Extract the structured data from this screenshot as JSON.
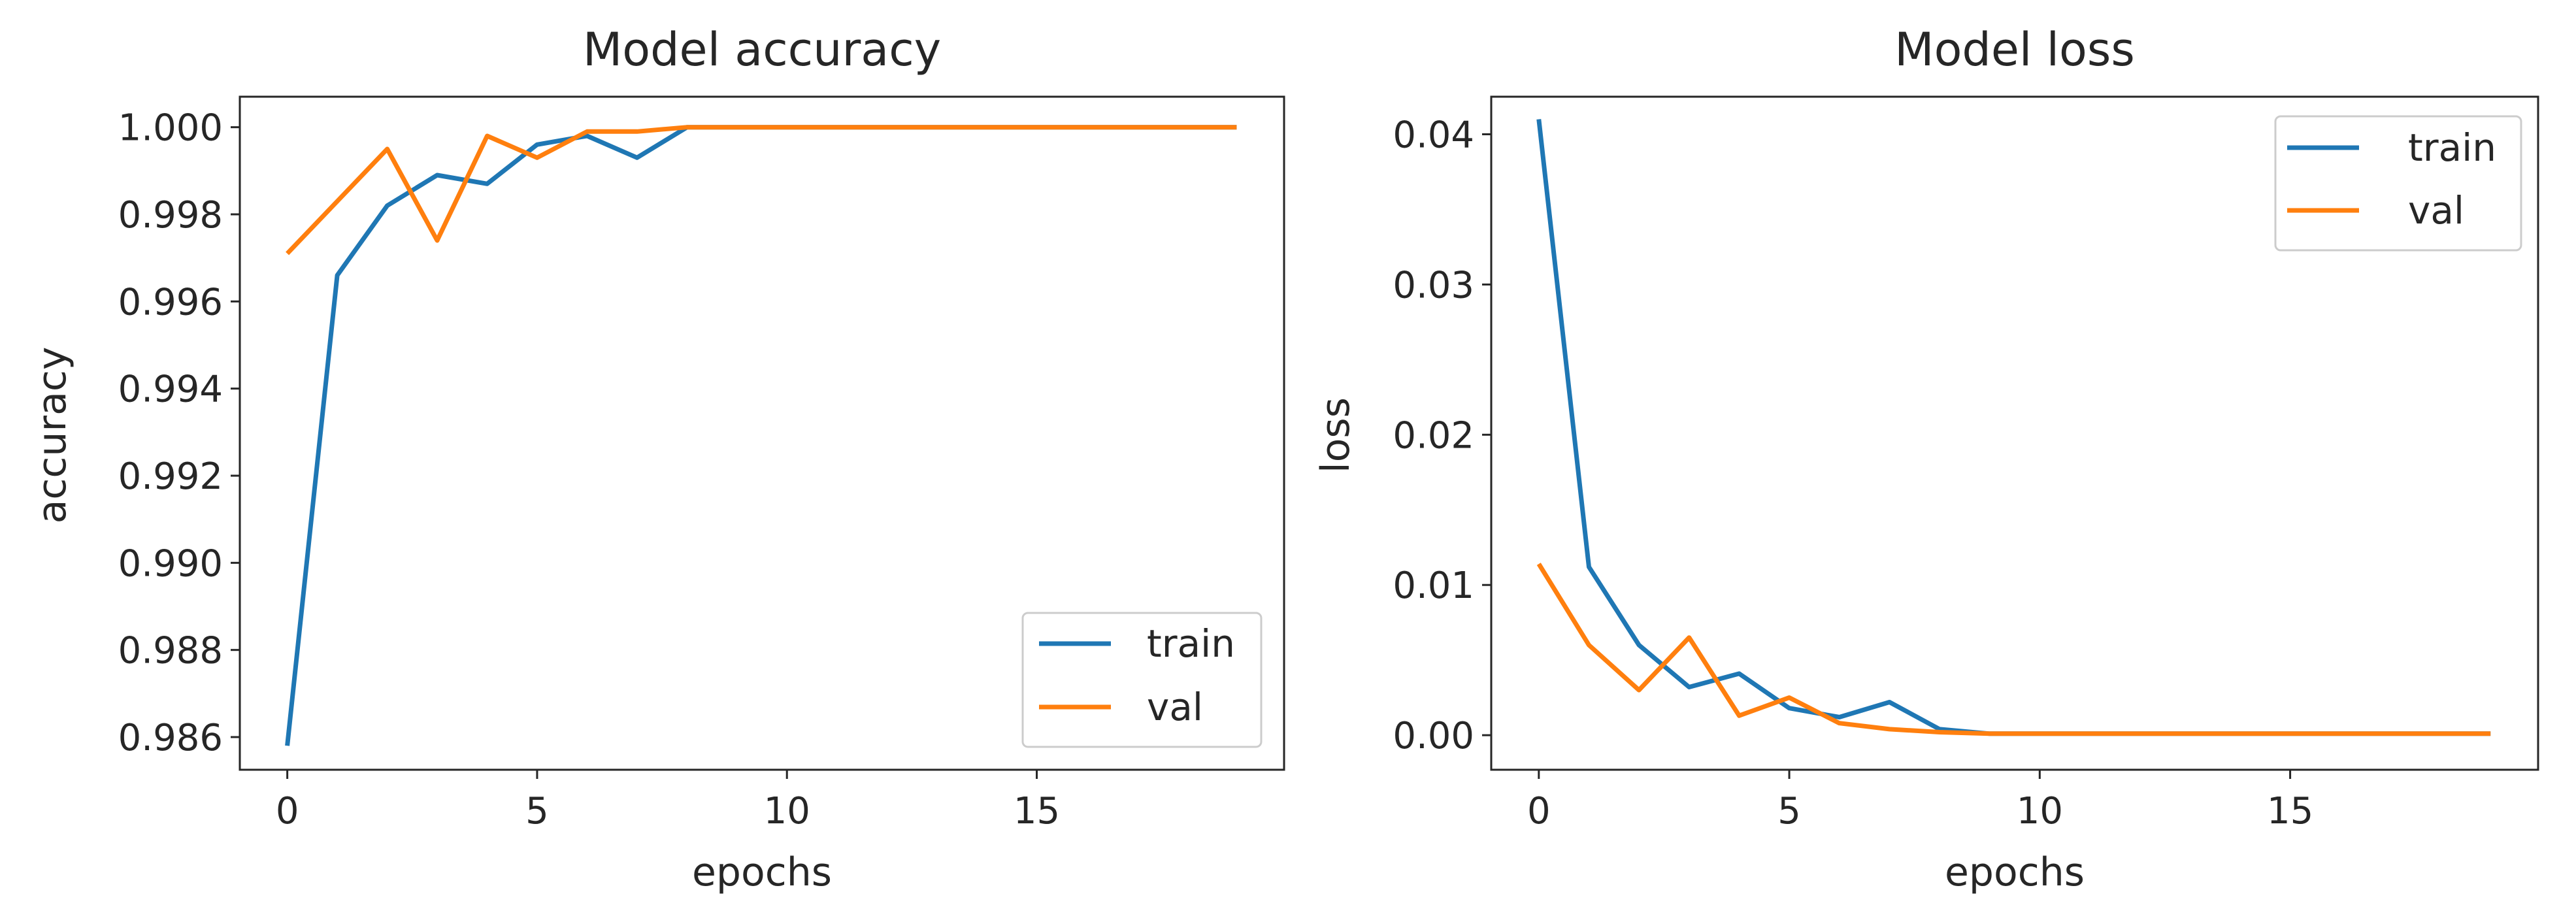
{
  "colors": {
    "train": "#1f77b4",
    "val": "#ff7f0e",
    "axes": "#262626",
    "legend_border": "#cccccc"
  },
  "chart_data": [
    {
      "type": "line",
      "title": "Model accuracy",
      "xlabel": "epochs",
      "ylabel": "accuracy",
      "xlim": [
        -0.95,
        19.95
      ],
      "ylim": [
        0.98525,
        1.0007
      ],
      "xticks": [
        0,
        5,
        10,
        15
      ],
      "xtick_labels": [
        "0",
        "5",
        "10",
        "15"
      ],
      "yticks": [
        0.986,
        0.988,
        0.99,
        0.992,
        0.994,
        0.996,
        0.998,
        1.0
      ],
      "ytick_labels": [
        "0.986",
        "0.988",
        "0.990",
        "0.992",
        "0.994",
        "0.996",
        "0.998",
        "1.000"
      ],
      "legend": "lower right",
      "x": [
        0,
        1,
        2,
        3,
        4,
        5,
        6,
        7,
        8,
        9,
        10,
        11,
        12,
        13,
        14,
        15,
        16,
        17,
        18,
        19
      ],
      "series": [
        {
          "name": "train",
          "values": [
            0.9858,
            0.9966,
            0.9982,
            0.9989,
            0.9987,
            0.9996,
            0.9998,
            0.9993,
            1.0,
            1.0,
            1.0,
            1.0,
            1.0,
            1.0,
            1.0,
            1.0,
            1.0,
            1.0,
            1.0,
            1.0
          ]
        },
        {
          "name": "val",
          "values": [
            0.9971,
            0.9983,
            0.9995,
            0.9974,
            0.9998,
            0.9993,
            0.9999,
            0.9999,
            1.0,
            1.0,
            1.0,
            1.0,
            1.0,
            1.0,
            1.0,
            1.0,
            1.0,
            1.0,
            1.0,
            1.0
          ]
        }
      ]
    },
    {
      "type": "line",
      "title": "Model loss",
      "xlabel": "epochs",
      "ylabel": "loss",
      "xlim": [
        -0.95,
        19.95
      ],
      "ylim": [
        -0.0023,
        0.0425
      ],
      "xticks": [
        0,
        5,
        10,
        15
      ],
      "xtick_labels": [
        "0",
        "5",
        "10",
        "15"
      ],
      "yticks": [
        0.0,
        0.01,
        0.02,
        0.03,
        0.04
      ],
      "ytick_labels": [
        "0.00",
        "0.01",
        "0.02",
        "0.03",
        "0.04"
      ],
      "legend": "upper right",
      "x": [
        0,
        1,
        2,
        3,
        4,
        5,
        6,
        7,
        8,
        9,
        10,
        11,
        12,
        13,
        14,
        15,
        16,
        17,
        18,
        19
      ],
      "series": [
        {
          "name": "train",
          "values": [
            0.041,
            0.0112,
            0.006,
            0.0032,
            0.0041,
            0.0018,
            0.0012,
            0.0022,
            0.0004,
            0.0001,
            0.0001,
            0.0001,
            0.0001,
            0.0001,
            0.0001,
            0.0001,
            0.0001,
            0.0001,
            0.0001,
            0.0001
          ]
        },
        {
          "name": "val",
          "values": [
            0.0114,
            0.006,
            0.003,
            0.0065,
            0.0013,
            0.0025,
            0.0008,
            0.0004,
            0.0002,
            0.0001,
            0.0001,
            0.0001,
            0.0001,
            0.0001,
            0.0001,
            0.0001,
            0.0001,
            0.0001,
            0.0001,
            0.0001
          ]
        }
      ]
    }
  ]
}
